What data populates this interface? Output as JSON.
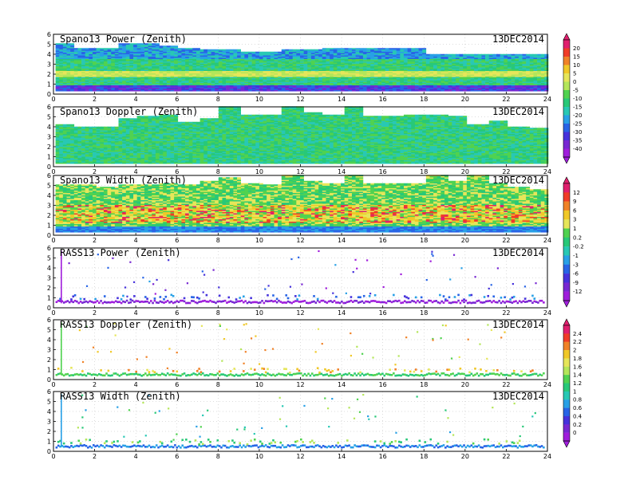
{
  "chart_data": [
    {
      "type": "heatmap",
      "title": "Spano13 Power (Zenith)",
      "date_label": "13DEC2014",
      "xlim": [
        0,
        24
      ],
      "ylim": [
        0,
        6
      ],
      "x_ticks": [
        "0",
        "2",
        "4",
        "6",
        "8",
        "10",
        "12",
        "14",
        "16",
        "18",
        "20",
        "22",
        "24"
      ],
      "y_ticks": [
        "0",
        "1",
        "2",
        "3",
        "4",
        "5",
        "6"
      ],
      "coverage_top_km": [
        5.0,
        4.6,
        4.6,
        5.0,
        5.0,
        4.8,
        4.6,
        4.4,
        4.4,
        4.2,
        4.2,
        4.4,
        4.4,
        4.6,
        4.6,
        4.6,
        4.6,
        4.6,
        4.0,
        4.0,
        4.0,
        4.0,
        4.0,
        4.0
      ],
      "layers": [
        {
          "height_km": 2.0,
          "level": 15
        },
        {
          "height_km": 0.6,
          "level": -40
        }
      ]
    },
    {
      "type": "heatmap",
      "title": "Spano13 Doppler (Zenith)",
      "date_label": "13DEC2014",
      "xlim": [
        0,
        24
      ],
      "ylim": [
        0,
        6
      ],
      "x_ticks": [
        "0",
        "2",
        "4",
        "6",
        "8",
        "10",
        "12",
        "14",
        "16",
        "18",
        "20",
        "22",
        "24"
      ],
      "y_ticks": [
        "0",
        "1",
        "2",
        "3",
        "4",
        "5",
        "6"
      ],
      "coverage_top_km": [
        4.2,
        4.0,
        4.0,
        4.8,
        5.0,
        5.2,
        4.4,
        4.8,
        6.0,
        5.2,
        5.2,
        6.0,
        5.4,
        5.2,
        6.0,
        5.0,
        5.0,
        5.2,
        5.2,
        5.0,
        4.2,
        4.6,
        4.0,
        3.8
      ]
    },
    {
      "type": "heatmap",
      "title": "Spano13 Width (Zenith)",
      "date_label": "13DEC2014",
      "xlim": [
        0,
        24
      ],
      "ylim": [
        0,
        6
      ],
      "x_ticks": [
        "0",
        "2",
        "4",
        "6",
        "8",
        "10",
        "12",
        "14",
        "16",
        "18",
        "20",
        "22",
        "24"
      ],
      "y_ticks": [
        "0",
        "1",
        "2",
        "3",
        "4",
        "5",
        "6"
      ],
      "coverage_top_km": [
        5.0,
        5.0,
        4.8,
        5.0,
        5.0,
        5.2,
        5.0,
        5.4,
        5.8,
        5.2,
        5.0,
        6.0,
        5.4,
        5.2,
        6.0,
        5.2,
        5.2,
        5.2,
        6.0,
        5.4,
        6.0,
        5.2,
        4.8,
        4.6
      ],
      "layers": [
        {
          "height_km": 2.0,
          "level": 9
        }
      ]
    },
    {
      "type": "heatmap",
      "title": "RASS13 Power (Zenith)",
      "date_label": "13DEC2014",
      "xlim": [
        0,
        24
      ],
      "ylim": [
        0,
        6
      ],
      "x_ticks": [
        "0",
        "2",
        "4",
        "6",
        "8",
        "10",
        "12",
        "14",
        "16",
        "18",
        "20",
        "22",
        "24"
      ],
      "y_ticks": [
        "0",
        "1",
        "2",
        "3",
        "4",
        "5",
        "6"
      ],
      "layers": [
        {
          "height_km": 0.7,
          "level": -12
        }
      ]
    },
    {
      "type": "heatmap",
      "title": "RASS13 Doppler (Zenith)",
      "date_label": "13DEC2014",
      "xlim": [
        0,
        24
      ],
      "ylim": [
        0,
        6
      ],
      "x_ticks": [
        "0",
        "2",
        "4",
        "6",
        "8",
        "10",
        "12",
        "14",
        "16",
        "18",
        "20",
        "22",
        "24"
      ],
      "y_ticks": [
        "0",
        "1",
        "2",
        "3",
        "4",
        "5",
        "6"
      ],
      "layers": [
        {
          "height_km": 0.6,
          "level": 1.2
        }
      ]
    },
    {
      "type": "heatmap",
      "title": "RASS13 Width (Zenith)",
      "date_label": "13DEC2014",
      "xlim": [
        0,
        24
      ],
      "ylim": [
        0,
        6
      ],
      "x_ticks": [
        "0",
        "2",
        "4",
        "6",
        "8",
        "10",
        "12",
        "14",
        "16",
        "18",
        "20",
        "22",
        "24"
      ],
      "y_ticks": [
        "0",
        "1",
        "2",
        "3",
        "4",
        "5",
        "6"
      ],
      "layers": [
        {
          "height_km": 0.6,
          "level": 0.6
        }
      ]
    }
  ],
  "colorbars": [
    {
      "labels": [
        "20",
        "15",
        "10",
        "5",
        "0",
        "-5",
        "-10",
        "-15",
        "-20",
        "-25",
        "-30",
        "-35",
        "-40"
      ],
      "colors": [
        "#e0206e",
        "#f03c28",
        "#f08228",
        "#f0c828",
        "#e6e65a",
        "#b4e65a",
        "#50d250",
        "#28c878",
        "#28c8b4",
        "#28a0e6",
        "#2864e6",
        "#4632dc",
        "#7828d2",
        "#a01edc"
      ]
    },
    {
      "labels": [
        "12",
        "9",
        "6",
        "3",
        "1",
        "0.2",
        "-0.2",
        "-1",
        "-3",
        "-6",
        "-9",
        "-12"
      ],
      "colors": [
        "#e0206e",
        "#f03c28",
        "#f08228",
        "#f0c828",
        "#e6e65a",
        "#50d250",
        "#28c878",
        "#28c8b4",
        "#28a0e6",
        "#2864e6",
        "#4632dc",
        "#7828d2",
        "#a01edc"
      ]
    },
    {
      "labels": [
        "2.4",
        "2.2",
        "2",
        "1.8",
        "1.6",
        "1.4",
        "1.2",
        "1",
        "0.8",
        "0.6",
        "0.4",
        "0.2",
        "0"
      ],
      "colors": [
        "#e0206e",
        "#f03c28",
        "#f08228",
        "#f0c828",
        "#e6e65a",
        "#b4e65a",
        "#50d250",
        "#28c878",
        "#28c8b4",
        "#28a0e6",
        "#2864e6",
        "#4632dc",
        "#7828d2",
        "#a01edc"
      ]
    }
  ]
}
